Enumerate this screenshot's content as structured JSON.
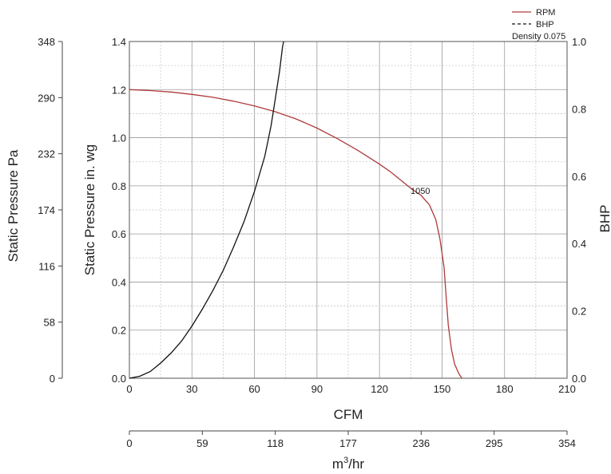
{
  "chart_data": {
    "type": "line",
    "xlabel": "CFM",
    "ylabel": "Static Pressure in. wg",
    "ylabel_secondary": "BHP",
    "ylabel_pa": "Static Pressure Pa",
    "xlabel_m3": "m",
    "xlabel_m3_sup": "3",
    "xlabel_m3_tail": "/hr",
    "xlim": [
      0,
      210
    ],
    "ylim": [
      0,
      1.4
    ],
    "y2lim": [
      0,
      1.0
    ],
    "x_ticks": [
      "0",
      "30",
      "60",
      "90",
      "120",
      "150",
      "180",
      "210"
    ],
    "y_ticks": [
      "0.0",
      "0.2",
      "0.4",
      "0.6",
      "0.8",
      "1.0",
      "1.2",
      "1.4"
    ],
    "y2_ticks": [
      "0.0",
      "0.2",
      "0.4",
      "0.6",
      "0.8",
      "1.0"
    ],
    "pa_ticks": [
      "0",
      "58",
      "116",
      "174",
      "232",
      "290",
      "348"
    ],
    "m3_ticks": [
      "0",
      "59",
      "118",
      "177",
      "236",
      "295",
      "354"
    ],
    "grid": true,
    "legend_position": "top-right",
    "legend": {
      "rpm": "RPM",
      "bhp": "BHP",
      "density": "Density 0.075"
    },
    "annotation": {
      "text": "1050",
      "x": 135,
      "y": 0.76
    },
    "series": [
      {
        "name": "RPM",
        "color": "#b03a3a",
        "points": [
          [
            0,
            1.2
          ],
          [
            10,
            1.196
          ],
          [
            20,
            1.19
          ],
          [
            30,
            1.18
          ],
          [
            40,
            1.168
          ],
          [
            50,
            1.152
          ],
          [
            60,
            1.132
          ],
          [
            70,
            1.108
          ],
          [
            80,
            1.078
          ],
          [
            90,
            1.04
          ],
          [
            100,
            0.995
          ],
          [
            110,
            0.945
          ],
          [
            120,
            0.89
          ],
          [
            125,
            0.86
          ],
          [
            130,
            0.825
          ],
          [
            135,
            0.79
          ],
          [
            140,
            0.76
          ],
          [
            144,
            0.72
          ],
          [
            147,
            0.66
          ],
          [
            149,
            0.58
          ],
          [
            151,
            0.46
          ],
          [
            152,
            0.34
          ],
          [
            153,
            0.22
          ],
          [
            154.5,
            0.12
          ],
          [
            156,
            0.06
          ],
          [
            158,
            0.02
          ],
          [
            159.5,
            0.0
          ]
        ]
      },
      {
        "name": "BHP",
        "color": "#111111",
        "axis": "secondary",
        "points": [
          [
            0,
            0.0
          ],
          [
            5,
            0.006
          ],
          [
            10,
            0.02
          ],
          [
            15,
            0.045
          ],
          [
            20,
            0.075
          ],
          [
            25,
            0.11
          ],
          [
            30,
            0.155
          ],
          [
            35,
            0.205
          ],
          [
            40,
            0.26
          ],
          [
            45,
            0.32
          ],
          [
            50,
            0.39
          ],
          [
            55,
            0.465
          ],
          [
            60,
            0.555
          ],
          [
            65,
            0.66
          ],
          [
            68,
            0.75
          ],
          [
            70,
            0.83
          ],
          [
            72,
            0.91
          ],
          [
            73.5,
            0.985
          ],
          [
            74,
            1.0
          ]
        ]
      }
    ]
  }
}
